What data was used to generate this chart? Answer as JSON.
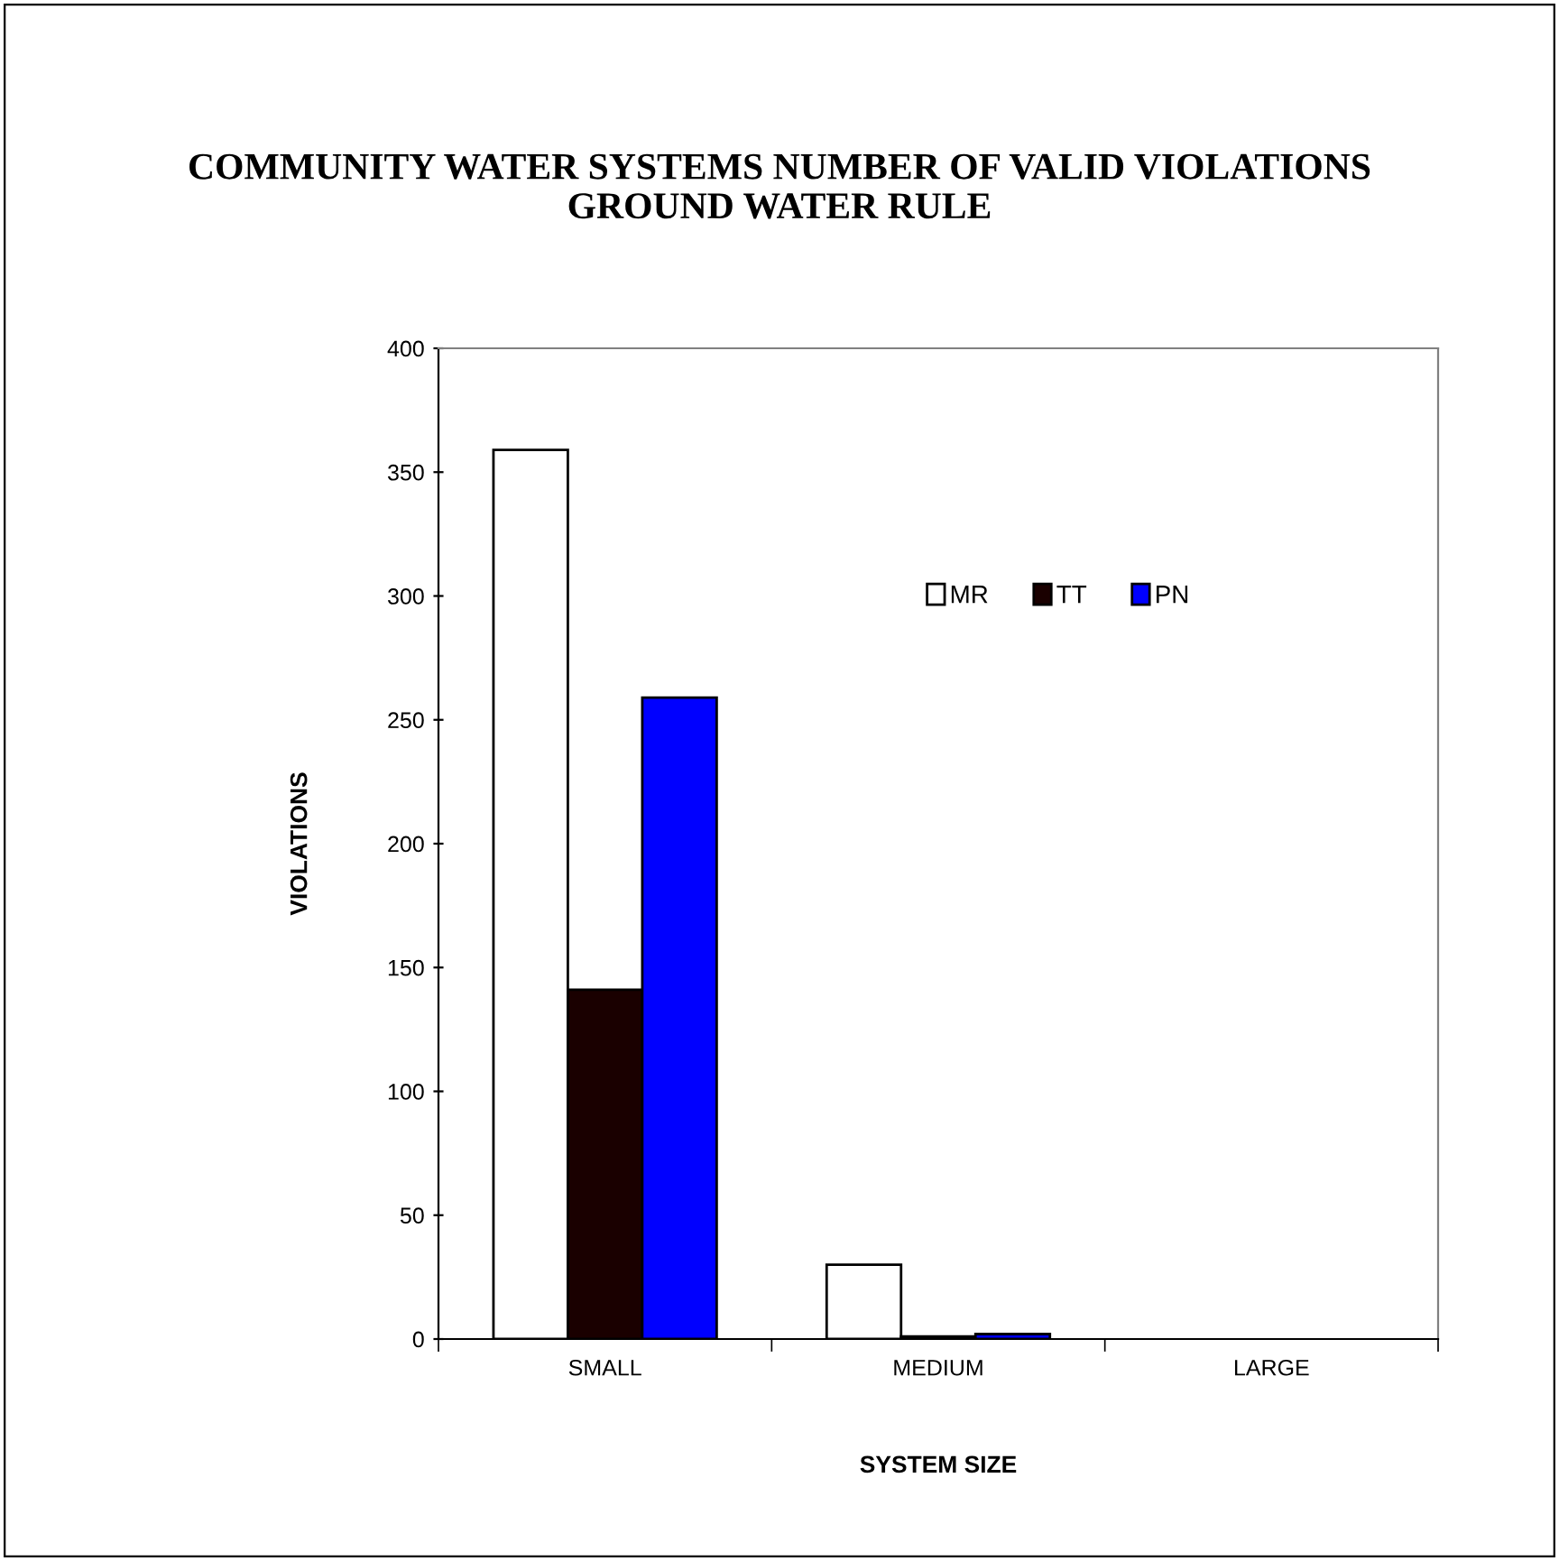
{
  "chart_data": {
    "type": "bar",
    "title": "COMMUNITY WATER SYSTEMS NUMBER OF VALID VIOLATIONS\nGROUND WATER RULE",
    "xlabel": "SYSTEM SIZE",
    "ylabel": "VIOLATIONS",
    "categories": [
      "SMALL",
      "MEDIUM",
      "LARGE"
    ],
    "series": [
      {
        "name": "MR",
        "color": "#ffffff",
        "values": [
          359,
          30,
          0
        ]
      },
      {
        "name": "TT",
        "color": "#1a0000",
        "values": [
          141,
          1,
          0
        ]
      },
      {
        "name": "PN",
        "color": "#0000ff",
        "values": [
          259,
          2,
          0
        ]
      }
    ],
    "ylim": [
      0,
      400
    ],
    "yticks": [
      0,
      50,
      100,
      150,
      200,
      250,
      300,
      350,
      400
    ],
    "grid": false,
    "legend": "center"
  }
}
